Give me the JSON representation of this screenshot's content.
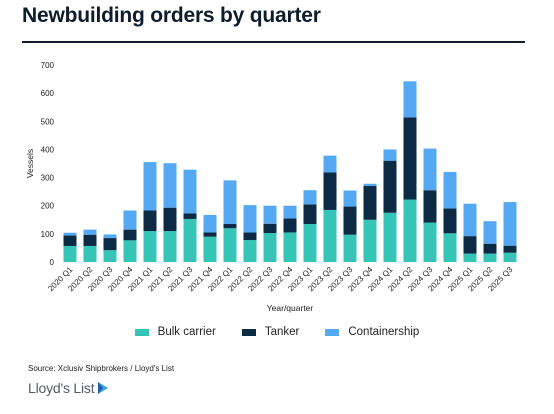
{
  "title": "Newbuilding orders by quarter",
  "source": "Source: Xclusiv Shipbrokers / Lloyd's List",
  "brand": "Lloyd's List",
  "colors": {
    "bulk": "#35c4b5",
    "tanker": "#0d2a45",
    "container": "#55a8f2",
    "axis_text": "#222222",
    "grid": "#e6e6e6"
  },
  "chart_data": {
    "type": "bar",
    "stacked": true,
    "title": "Newbuilding orders by quarter",
    "xlabel": "Year/quarter",
    "ylabel": "Vessels",
    "ylim": [
      0,
      700
    ],
    "yticks": [
      0,
      100,
      200,
      300,
      400,
      500,
      600,
      700
    ],
    "grid": false,
    "legend_position": "bottom",
    "categories": [
      "2020 Q1",
      "2020 Q2",
      "2020 Q3",
      "2020 Q4",
      "2021 Q1",
      "2021 Q2",
      "2021 Q3",
      "2021 Q4",
      "2022 Q1",
      "2022 Q2",
      "2022 Q3",
      "2022 Q4",
      "2023 Q1",
      "2023 Q2",
      "2023 Q3",
      "2023 Q4",
      "2024 Q1",
      "2024 Q2",
      "2024 Q3",
      "2024 Q4",
      "2025 Q1",
      "2025 Q2",
      "2025 Q3"
    ],
    "series": [
      {
        "name": "Bulk carrier",
        "values": [
          57,
          57,
          42,
          77,
          110,
          110,
          153,
          90,
          120,
          78,
          103,
          105,
          135,
          185,
          97,
          150,
          175,
          222,
          140,
          102,
          30,
          30,
          33
        ]
      },
      {
        "name": "Tanker",
        "values": [
          37,
          40,
          43,
          38,
          73,
          83,
          20,
          15,
          15,
          27,
          33,
          50,
          70,
          133,
          100,
          120,
          185,
          292,
          115,
          88,
          62,
          35,
          25
        ]
      },
      {
        "name": "Containership",
        "values": [
          10,
          18,
          13,
          68,
          172,
          158,
          155,
          62,
          155,
          97,
          64,
          45,
          50,
          60,
          57,
          8,
          40,
          128,
          148,
          130,
          115,
          80,
          155
        ]
      }
    ]
  }
}
